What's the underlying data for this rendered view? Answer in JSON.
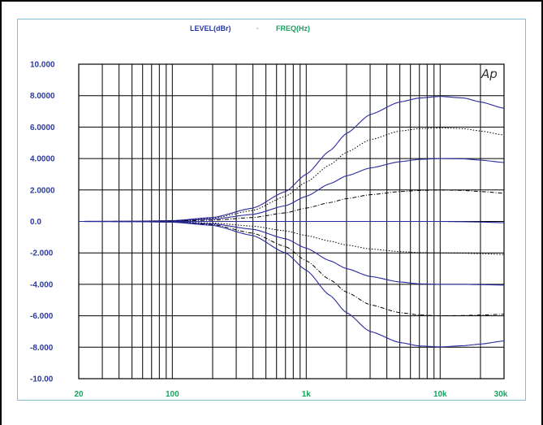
{
  "header": {
    "left_label": "LEVEL(dBr)",
    "mid_label": "-",
    "right_label": "FREQ(Hz)"
  },
  "logo_text": "Ap",
  "colors": {
    "panel_border": "#7fbfd0",
    "grid": "#000000",
    "curve_solid": "#2a2a9e",
    "curve_dotted": "#000000",
    "header_left": "#2a3aa0",
    "header_right": "#1aa060"
  },
  "chart_data": {
    "type": "line",
    "x_scale": "log",
    "xlim": [
      20,
      30000
    ],
    "ylim": [
      -10,
      10
    ],
    "grid": true,
    "x_tick_labels": [
      {
        "value": 20,
        "label": "20"
      },
      {
        "value": 100,
        "label": "100"
      },
      {
        "value": 1000,
        "label": "1k"
      },
      {
        "value": 10000,
        "label": "10k"
      },
      {
        "value": 30000,
        "label": "30k"
      }
    ],
    "y_tick_labels": [
      {
        "value": 10,
        "label": "10.000"
      },
      {
        "value": 8,
        "label": "8.0000"
      },
      {
        "value": 6,
        "label": "6.0000"
      },
      {
        "value": 4,
        "label": "4.0000"
      },
      {
        "value": 2,
        "label": "2.0000"
      },
      {
        "value": 0,
        "label": "0.0"
      },
      {
        "value": -2,
        "label": "-2.000"
      },
      {
        "value": -4,
        "label": "-4.000"
      },
      {
        "value": -6,
        "label": "-6.000"
      },
      {
        "value": -8,
        "label": "-8.000"
      },
      {
        "value": -10,
        "label": "-10.00"
      }
    ],
    "x": [
      20,
      50,
      100,
      200,
      400,
      700,
      1000,
      1500,
      2000,
      3000,
      5000,
      7000,
      10000,
      15000,
      20000,
      30000
    ],
    "series": [
      {
        "style": "solid",
        "values": [
          0,
          0.01,
          0.05,
          0.25,
          0.85,
          1.9,
          3.0,
          4.5,
          5.6,
          6.8,
          7.6,
          7.85,
          7.95,
          7.85,
          7.6,
          7.2
        ]
      },
      {
        "style": "dotted",
        "values": [
          0,
          0.01,
          0.04,
          0.2,
          0.7,
          1.6,
          2.5,
          3.6,
          4.4,
          5.2,
          5.75,
          5.9,
          5.95,
          5.9,
          5.75,
          5.5
        ]
      },
      {
        "style": "solid",
        "values": [
          0,
          0.01,
          0.03,
          0.15,
          0.45,
          1.0,
          1.6,
          2.4,
          2.9,
          3.4,
          3.8,
          3.95,
          4.0,
          3.98,
          3.9,
          3.75
        ]
      },
      {
        "style": "dashed",
        "values": [
          0,
          0.0,
          0.02,
          0.08,
          0.25,
          0.55,
          0.85,
          1.2,
          1.45,
          1.7,
          1.9,
          1.97,
          2.0,
          1.97,
          1.9,
          1.8
        ]
      },
      {
        "style": "solid",
        "values": [
          0,
          0,
          0,
          0,
          0,
          0,
          0,
          0,
          0,
          0,
          0,
          0,
          0,
          -0.02,
          -0.04,
          -0.08
        ]
      },
      {
        "style": "dotted",
        "values": [
          0,
          0.0,
          -0.02,
          -0.1,
          -0.3,
          -0.6,
          -0.9,
          -1.25,
          -1.5,
          -1.75,
          -1.92,
          -1.98,
          -2.0,
          -2.02,
          -2.05,
          -2.1
        ]
      },
      {
        "style": "solid",
        "values": [
          0,
          -0.01,
          -0.03,
          -0.15,
          -0.5,
          -1.1,
          -1.7,
          -2.5,
          -3.0,
          -3.5,
          -3.85,
          -3.97,
          -4.0,
          -4.0,
          -4.02,
          -4.05
        ]
      },
      {
        "style": "dashed",
        "values": [
          0,
          -0.01,
          -0.04,
          -0.2,
          -0.75,
          -1.6,
          -2.5,
          -3.7,
          -4.5,
          -5.3,
          -5.8,
          -5.95,
          -6.0,
          -5.98,
          -5.95,
          -5.9
        ]
      },
      {
        "style": "solid",
        "values": [
          0,
          -0.01,
          -0.05,
          -0.25,
          -0.9,
          -2.0,
          -3.1,
          -4.7,
          -5.8,
          -7.0,
          -7.7,
          -7.92,
          -7.98,
          -7.9,
          -7.8,
          -7.6
        ]
      }
    ]
  }
}
